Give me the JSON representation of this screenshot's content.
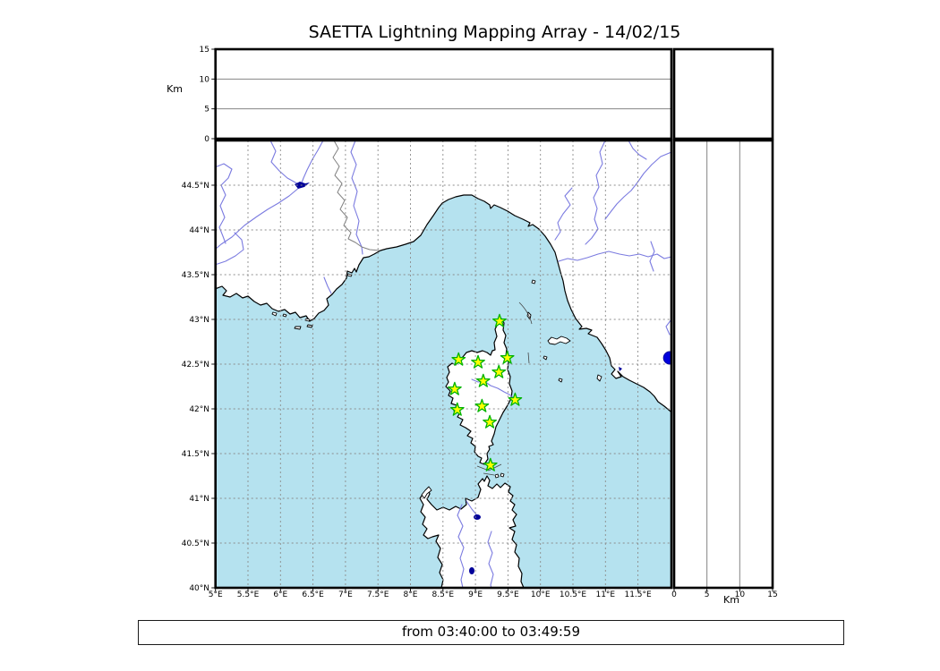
{
  "title": "SAETTA Lightning Mapping Array - 14/02/15",
  "footer": {
    "time_range": "from 03:40:00 to 03:49:59"
  },
  "axes": {
    "km_axis_label": "Km",
    "km_ticks": [
      {
        "value": 0,
        "label": "0"
      },
      {
        "value": 5,
        "label": "5"
      },
      {
        "value": 10,
        "label": "10"
      },
      {
        "value": 15,
        "label": "15"
      }
    ],
    "km_gridlines": [
      5,
      10
    ],
    "km_range": [
      0,
      15
    ],
    "lon_range": [
      5,
      12.02
    ],
    "lat_range": [
      40,
      45
    ],
    "lon_ticks": [
      {
        "value": 5,
        "label": "5°E"
      },
      {
        "value": 5.5,
        "label": "5.5°E"
      },
      {
        "value": 6,
        "label": "6°E"
      },
      {
        "value": 6.5,
        "label": "6.5°E"
      },
      {
        "value": 7,
        "label": "7°E"
      },
      {
        "value": 7.5,
        "label": "7.5°E"
      },
      {
        "value": 8,
        "label": "8°E"
      },
      {
        "value": 8.5,
        "label": "8.5°E"
      },
      {
        "value": 9,
        "label": "9°E"
      },
      {
        "value": 9.5,
        "label": "9.5°E"
      },
      {
        "value": 10,
        "label": "10°E"
      },
      {
        "value": 10.5,
        "label": "10.5°E"
      },
      {
        "value": 11,
        "label": "11°E"
      },
      {
        "value": 11.5,
        "label": "11.5°E"
      }
    ],
    "lat_ticks": [
      {
        "value": 40,
        "label": "40°N"
      },
      {
        "value": 40.5,
        "label": "40.5°N"
      },
      {
        "value": 41,
        "label": "41°N"
      },
      {
        "value": 41.5,
        "label": "41.5°N"
      },
      {
        "value": 42,
        "label": "42°N"
      },
      {
        "value": 42.5,
        "label": "42.5°N"
      },
      {
        "value": 43,
        "label": "43°N"
      },
      {
        "value": 43.5,
        "label": "43.5°N"
      },
      {
        "value": 44,
        "label": "44°N"
      },
      {
        "value": 44.5,
        "label": "44.5°N"
      }
    ]
  },
  "chart_data": {
    "type": "map",
    "title": "SAETTA Lightning Mapping Array - 14/02/15",
    "time_window": {
      "from": "03:40:00",
      "to": "03:49:59"
    },
    "map_extent": {
      "lon_min_E": 5,
      "lon_max_E": 12,
      "lat_min_N": 40,
      "lat_max_N": 45
    },
    "altitude_km_range": [
      0,
      15
    ],
    "altitude_km_gridlines": [
      5,
      10
    ],
    "station_marker": "star",
    "stations_lon_lat": [
      [
        9.37,
        42.98
      ],
      [
        8.74,
        42.55
      ],
      [
        9.04,
        42.52
      ],
      [
        9.49,
        42.57
      ],
      [
        9.36,
        42.41
      ],
      [
        9.12,
        42.31
      ],
      [
        8.68,
        42.22
      ],
      [
        9.61,
        42.1
      ],
      [
        9.1,
        42.03
      ],
      [
        8.72,
        41.99
      ],
      [
        9.22,
        41.85
      ],
      [
        9.23,
        41.37
      ]
    ],
    "lake_point_lon_lat": [
      11.99,
      42.57
    ],
    "legend": "none",
    "grid": "dashed 0.5 degree"
  },
  "colors": {
    "sea": "#b5e2ef",
    "land": "#ffffff",
    "coast": "#000000",
    "grid": "#8c8c8c",
    "river": "#7b7be0",
    "borderline": "#808080",
    "starfill": "#ffff00",
    "staredge": "#00b300",
    "lake": "#0000dd",
    "darklake": "#000099"
  }
}
